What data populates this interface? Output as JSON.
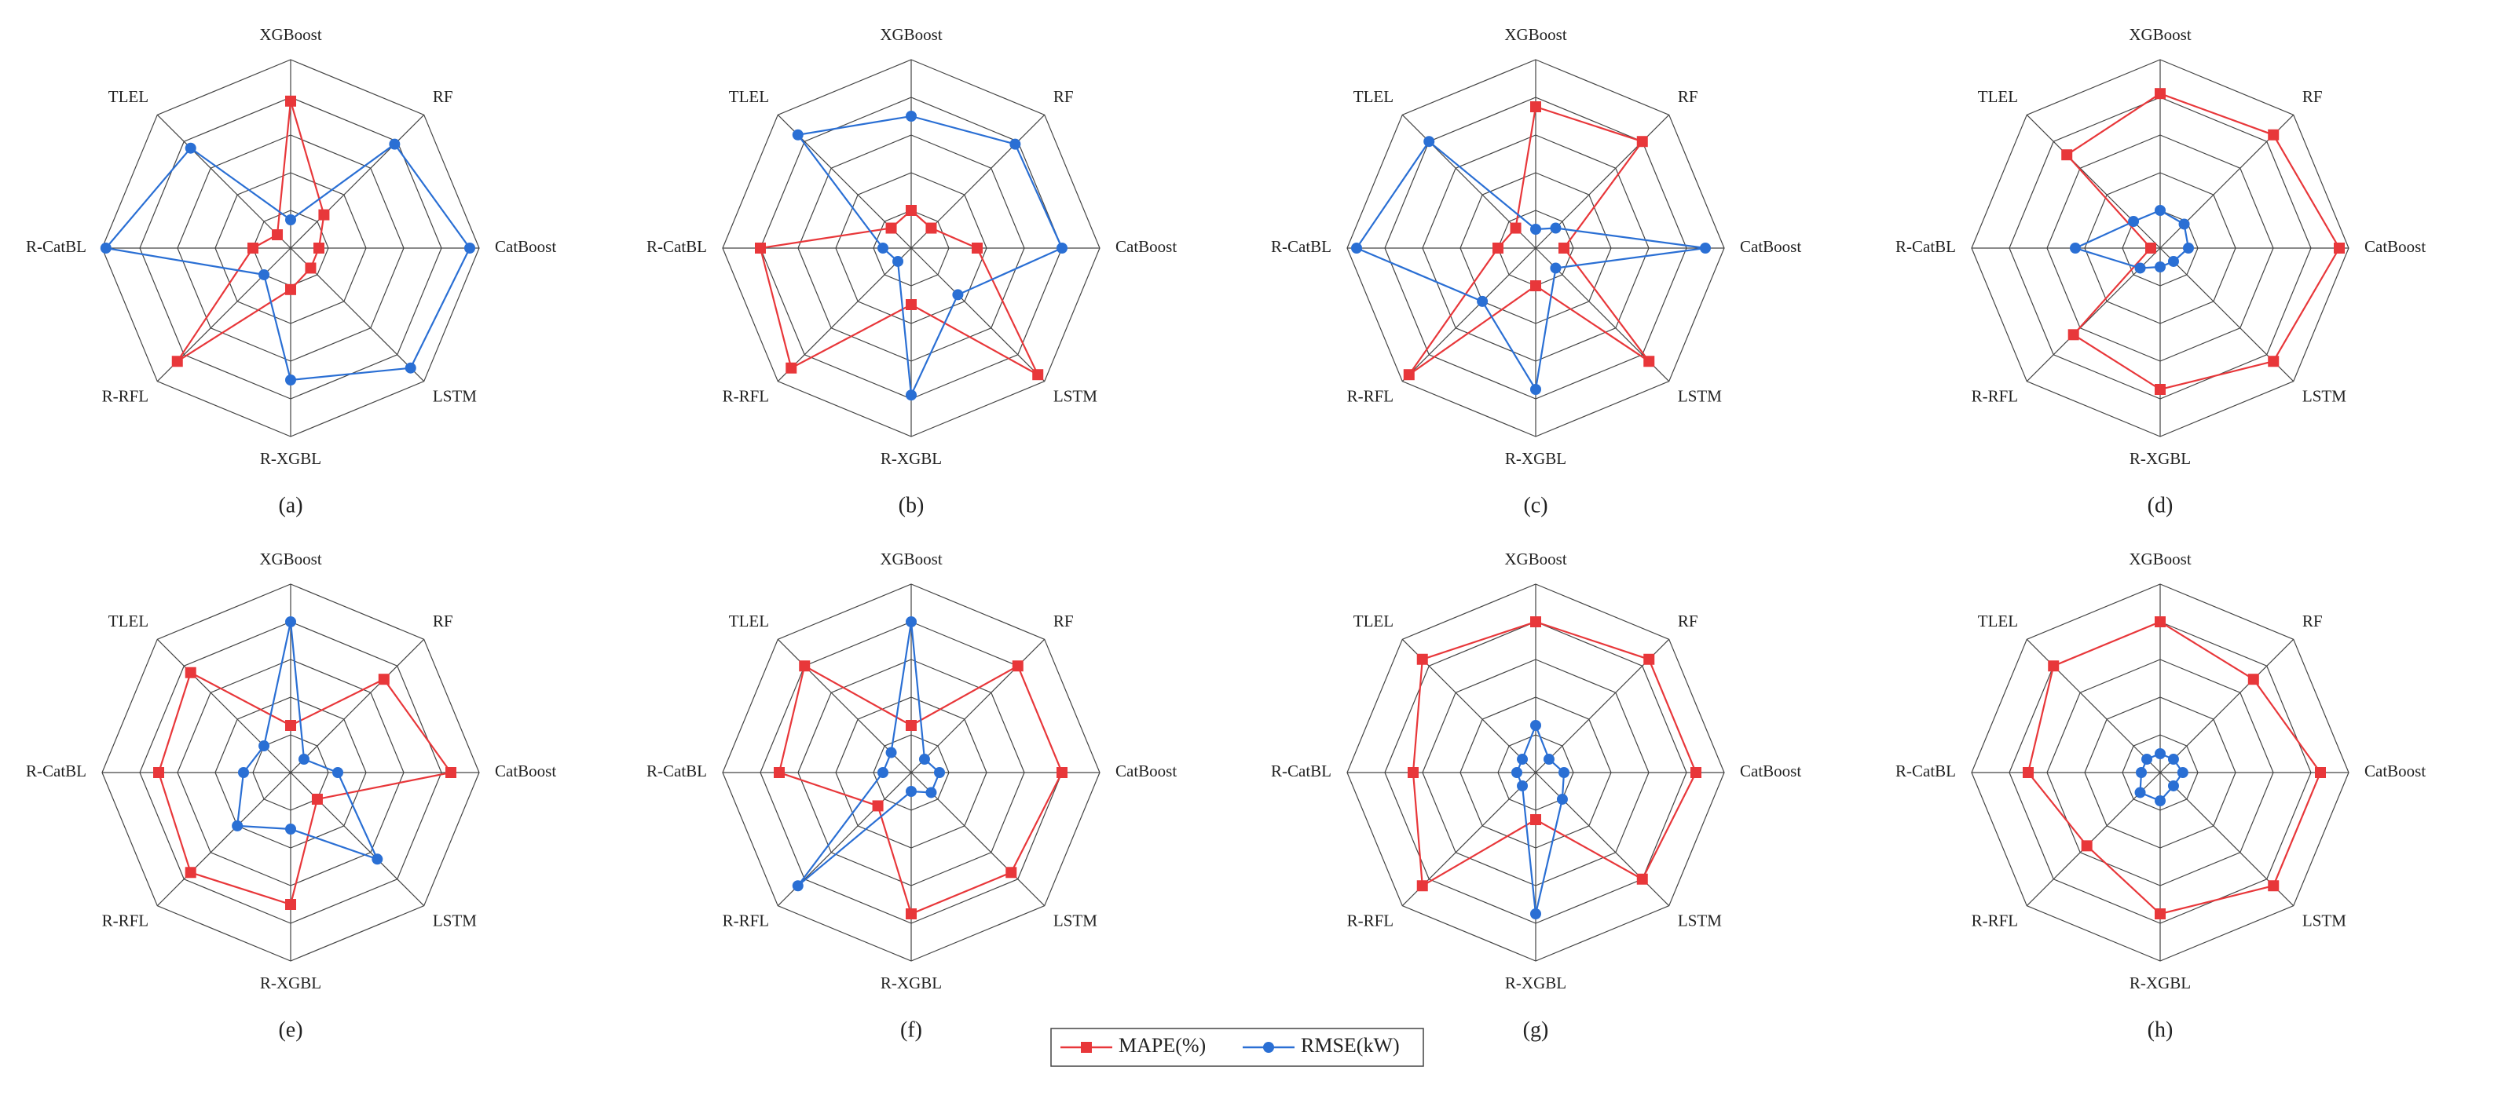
{
  "legend": {
    "entries": [
      {
        "name": "MAPE(%)",
        "color": "#e8373a"
      },
      {
        "name": "RMSE(kW)",
        "color": "#2a6fd4"
      }
    ]
  },
  "chart_data": [
    {
      "type": "radar",
      "label": "(a)",
      "categories": [
        "XGBoost",
        "RF",
        "CatBoost",
        "LSTM",
        "R-XGBL",
        "R-RFL",
        "R-CatBL",
        "TLEL"
      ],
      "rlim": [
        0,
        1
      ],
      "rticks": [
        0.2,
        0.4,
        0.6,
        0.8,
        1
      ],
      "series": [
        {
          "values": [
            0.78,
            0.25,
            0.15,
            0.15,
            0.22,
            0.85,
            0.2,
            0.1
          ]
        },
        {
          "values": [
            0.15,
            0.78,
            0.95,
            0.9,
            0.7,
            0.2,
            0.98,
            0.75
          ]
        }
      ]
    },
    {
      "type": "radar",
      "label": "(b)",
      "categories": [
        "XGBoost",
        "RF",
        "CatBoost",
        "LSTM",
        "R-XGBL",
        "R-RFL",
        "R-CatBL",
        "TLEL"
      ],
      "rlim": [
        0,
        1
      ],
      "rticks": [
        0.2,
        0.4,
        0.6,
        0.8,
        1
      ],
      "series": [
        {
          "values": [
            0.2,
            0.15,
            0.35,
            0.95,
            0.3,
            0.9,
            0.8,
            0.15
          ]
        },
        {
          "values": [
            0.7,
            0.78,
            0.8,
            0.35,
            0.78,
            0.1,
            0.15,
            0.85
          ]
        }
      ]
    },
    {
      "type": "radar",
      "label": "(c)",
      "categories": [
        "XGBoost",
        "RF",
        "CatBoost",
        "LSTM",
        "R-XGBL",
        "R-RFL",
        "R-CatBL",
        "TLEL"
      ],
      "rlim": [
        0,
        1
      ],
      "rticks": [
        0.2,
        0.4,
        0.6,
        0.8,
        1
      ],
      "series": [
        {
          "values": [
            0.75,
            0.8,
            0.15,
            0.85,
            0.2,
            0.95,
            0.2,
            0.15
          ]
        },
        {
          "values": [
            0.1,
            0.15,
            0.9,
            0.15,
            0.75,
            0.4,
            0.95,
            0.8
          ]
        }
      ]
    },
    {
      "type": "radar",
      "label": "(d)",
      "categories": [
        "XGBoost",
        "RF",
        "CatBoost",
        "LSTM",
        "R-XGBL",
        "R-RFL",
        "R-CatBL",
        "TLEL"
      ],
      "rlim": [
        0,
        1
      ],
      "rticks": [
        0.2,
        0.4,
        0.6,
        0.8,
        1
      ],
      "series": [
        {
          "values": [
            0.82,
            0.85,
            0.95,
            0.85,
            0.75,
            0.65,
            0.05,
            0.7
          ]
        },
        {
          "values": [
            0.2,
            0.18,
            0.15,
            0.1,
            0.1,
            0.15,
            0.45,
            0.2
          ]
        }
      ]
    },
    {
      "type": "radar",
      "label": "(e)",
      "categories": [
        "XGBoost",
        "RF",
        "CatBoost",
        "LSTM",
        "R-XGBL",
        "R-RFL",
        "R-CatBL",
        "TLEL"
      ],
      "rlim": [
        0,
        1
      ],
      "rticks": [
        0.2,
        0.4,
        0.6,
        0.8,
        1
      ],
      "series": [
        {
          "values": [
            0.25,
            0.7,
            0.85,
            0.2,
            0.7,
            0.75,
            0.7,
            0.75
          ]
        },
        {
          "values": [
            0.8,
            0.1,
            0.25,
            0.65,
            0.3,
            0.4,
            0.25,
            0.2
          ]
        }
      ]
    },
    {
      "type": "radar",
      "label": "(f)",
      "categories": [
        "XGBoost",
        "RF",
        "CatBoost",
        "LSTM",
        "R-XGBL",
        "R-RFL",
        "R-CatBL",
        "TLEL"
      ],
      "rlim": [
        0,
        1
      ],
      "rticks": [
        0.2,
        0.4,
        0.6,
        0.8,
        1
      ],
      "series": [
        {
          "values": [
            0.25,
            0.8,
            0.8,
            0.75,
            0.75,
            0.25,
            0.7,
            0.8
          ]
        },
        {
          "values": [
            0.8,
            0.1,
            0.15,
            0.15,
            0.1,
            0.85,
            0.15,
            0.15
          ]
        }
      ]
    },
    {
      "type": "radar",
      "label": "(g)",
      "categories": [
        "XGBoost",
        "RF",
        "CatBoost",
        "LSTM",
        "R-XGBL",
        "R-RFL",
        "R-CatBL",
        "TLEL"
      ],
      "rlim": [
        0,
        1
      ],
      "rticks": [
        0.2,
        0.4,
        0.6,
        0.8,
        1
      ],
      "series": [
        {
          "values": [
            0.8,
            0.85,
            0.85,
            0.8,
            0.25,
            0.85,
            0.65,
            0.85
          ]
        },
        {
          "values": [
            0.25,
            0.1,
            0.15,
            0.2,
            0.75,
            0.1,
            0.1,
            0.1
          ]
        }
      ]
    },
    {
      "type": "radar",
      "label": "(h)",
      "categories": [
        "XGBoost",
        "RF",
        "CatBoost",
        "LSTM",
        "R-XGBL",
        "R-RFL",
        "R-CatBL",
        "TLEL"
      ],
      "rlim": [
        0,
        1
      ],
      "rticks": [
        0.2,
        0.4,
        0.6,
        0.8,
        1
      ],
      "series": [
        {
          "values": [
            0.8,
            0.7,
            0.85,
            0.85,
            0.75,
            0.55,
            0.7,
            0.8
          ]
        },
        {
          "values": [
            0.1,
            0.1,
            0.12,
            0.1,
            0.15,
            0.15,
            0.1,
            0.1
          ]
        }
      ]
    }
  ]
}
